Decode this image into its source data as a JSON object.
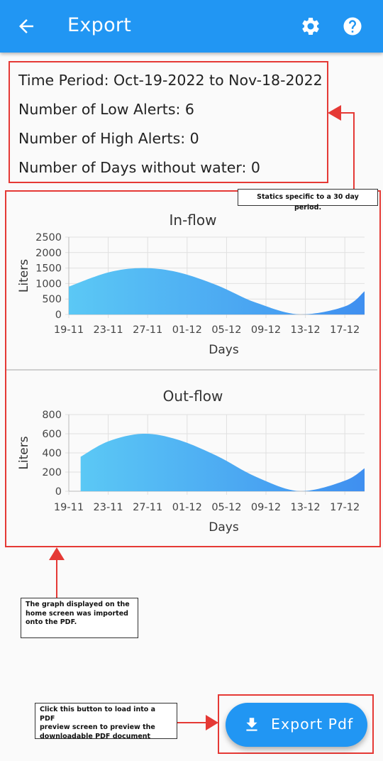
{
  "appbar": {
    "title": "Export",
    "back_icon": "arrow-left-icon",
    "settings_icon": "gear-icon",
    "help_icon": "help-circle-icon"
  },
  "stats": {
    "time_period": "Time Period: Oct-19-2022 to Nov-18-2022",
    "low_alerts": "Number of Low Alerts: 6",
    "high_alerts": "Number of High Alerts: 0",
    "days_without_water": "Number of Days without water: 0"
  },
  "annotations": {
    "stats_note": "Statics specific to a 30 day period.",
    "graph_note_lines": [
      "The graph displayed on the",
      "home screen was imported",
      "onto the PDF."
    ],
    "button_note_lines": [
      "Click this button to load into a PDF",
      "preview screen to preview the",
      "downloadable PDF document"
    ],
    "annotation_color": "#e53935"
  },
  "chart_data": [
    {
      "type": "area",
      "title": "In-flow",
      "xlabel": "Days",
      "ylabel": "Liters",
      "x_ticks": [
        "19-11",
        "23-11",
        "27-11",
        "01-12",
        "05-12",
        "09-12",
        "13-12",
        "17-12"
      ],
      "y_ticks": [
        "0",
        "500",
        "1000",
        "1500",
        "2000",
        "2500"
      ],
      "ylim": [
        0,
        2500
      ],
      "x": [
        0,
        4,
        7.5,
        11,
        15,
        19,
        23.5,
        28,
        30
      ],
      "y": [
        900,
        1360,
        1500,
        1370,
        950,
        380,
        0,
        260,
        750
      ],
      "grid": true,
      "fill": [
        "#5bc8f5",
        "#3f8ff0"
      ]
    },
    {
      "type": "area",
      "title": "Out-flow",
      "xlabel": "Days",
      "ylabel": "Liters",
      "x_ticks": [
        "19-11",
        "23-11",
        "27-11",
        "01-12",
        "05-12",
        "09-12",
        "13-12",
        "17-12"
      ],
      "y_ticks": [
        "0",
        "200",
        "400",
        "600",
        "800"
      ],
      "ylim": [
        0,
        800
      ],
      "x": [
        1.2,
        4,
        7.5,
        11,
        15,
        19,
        23.5,
        28,
        30
      ],
      "y": [
        360,
        520,
        600,
        540,
        370,
        150,
        0,
        110,
        240
      ],
      "grid": true,
      "fill": [
        "#5bc8f5",
        "#3f8ff0"
      ]
    }
  ],
  "export_button": {
    "label": "Export Pdf",
    "icon": "download-icon"
  },
  "colors": {
    "primary": "#2196f3",
    "background": "#fafafa"
  }
}
